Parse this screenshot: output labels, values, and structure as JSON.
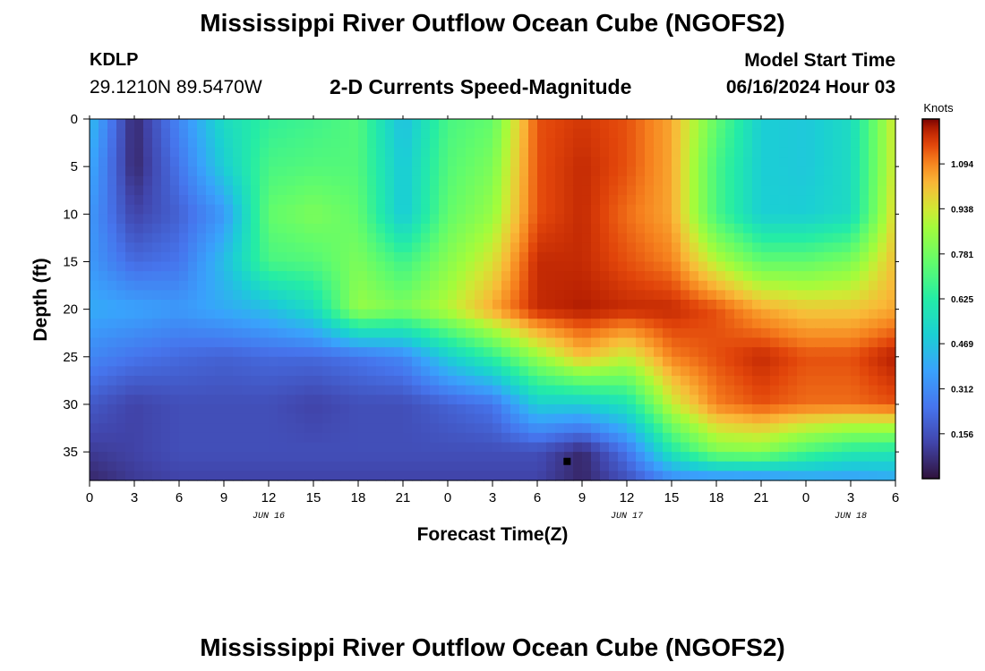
{
  "header": {
    "title": "Mississippi River Outflow Ocean Cube (NGOFS2)",
    "station_id": "KDLP",
    "station_coords": "29.1210N  89.5470W",
    "subtitle": "2-D Currents Speed-Magnitude",
    "model_label": "Model Start Time",
    "model_start": "06/16/2024 Hour 03"
  },
  "footer": {
    "title": "Mississippi River Outflow Ocean Cube (NGOFS2)"
  },
  "chart_data": {
    "type": "heatmap",
    "title": "2-D Currents Speed-Magnitude",
    "xlabel": "Forecast Time(Z)",
    "ylabel": "Depth (ft)",
    "x_hours_range": [
      0,
      54
    ],
    "x_tick_hours": [
      0,
      3,
      6,
      9,
      12,
      15,
      18,
      21,
      24,
      27,
      30,
      33,
      36,
      39,
      42,
      45,
      48,
      51,
      54
    ],
    "x_tick_labels": [
      "0",
      "3",
      "6",
      "9",
      "12",
      "15",
      "18",
      "21",
      "0",
      "3",
      "6",
      "9",
      "12",
      "15",
      "18",
      "21",
      "0",
      "3",
      "6"
    ],
    "date_labels": [
      {
        "hour": 12,
        "label": "JUN 16"
      },
      {
        "hour": 36,
        "label": "JUN 17"
      },
      {
        "hour": 51,
        "label": "JUN 18"
      }
    ],
    "y_range": [
      0,
      38
    ],
    "y_ticks": [
      0,
      5,
      10,
      15,
      20,
      25,
      30,
      35
    ],
    "colorbar": {
      "unit": "Knots",
      "range": [
        0.0,
        1.25
      ],
      "ticks": [
        0.156,
        0.312,
        0.469,
        0.625,
        0.781,
        0.938,
        1.094
      ],
      "tick_labels": [
        "0.156",
        "0.312",
        "0.469",
        "0.625",
        "0.781",
        "0.938",
        "1.094"
      ]
    },
    "grid_hours": [
      0,
      3,
      6,
      9,
      12,
      15,
      18,
      21,
      24,
      27,
      30,
      33,
      36,
      39,
      42,
      45,
      48,
      51,
      54
    ],
    "grid_depths": [
      0,
      5,
      10,
      15,
      20,
      25,
      30,
      35,
      38
    ],
    "speed_knots": [
      [
        0.45,
        0.05,
        0.3,
        0.55,
        0.65,
        0.68,
        0.72,
        0.45,
        0.7,
        0.75,
        1.15,
        1.18,
        1.15,
        1.05,
        0.75,
        0.5,
        0.48,
        0.55,
        0.95
      ],
      [
        0.4,
        0.05,
        0.25,
        0.5,
        0.7,
        0.72,
        0.72,
        0.48,
        0.72,
        0.8,
        1.15,
        1.2,
        1.15,
        1.05,
        0.7,
        0.5,
        0.48,
        0.55,
        0.95
      ],
      [
        0.35,
        0.12,
        0.2,
        0.35,
        0.75,
        0.8,
        0.75,
        0.48,
        0.75,
        0.85,
        1.15,
        1.2,
        1.12,
        1.05,
        0.7,
        0.5,
        0.5,
        0.55,
        0.98
      ],
      [
        0.35,
        0.22,
        0.25,
        0.45,
        0.7,
        0.72,
        0.8,
        0.68,
        0.82,
        0.95,
        1.2,
        1.2,
        1.15,
        1.1,
        0.9,
        0.75,
        0.75,
        0.8,
        1.02
      ],
      [
        0.4,
        0.38,
        0.35,
        0.4,
        0.45,
        0.55,
        0.85,
        0.8,
        0.9,
        1.05,
        1.2,
        1.22,
        1.2,
        1.2,
        1.15,
        1.05,
        1.0,
        1.0,
        1.05
      ],
      [
        0.3,
        0.25,
        0.22,
        0.2,
        0.22,
        0.22,
        0.25,
        0.3,
        0.5,
        0.65,
        0.85,
        1.02,
        0.92,
        1.1,
        1.15,
        1.2,
        1.15,
        1.15,
        1.22
      ],
      [
        0.18,
        0.12,
        0.15,
        0.15,
        0.15,
        0.12,
        0.15,
        0.15,
        0.2,
        0.25,
        0.5,
        0.5,
        0.58,
        0.92,
        1.1,
        1.15,
        1.12,
        1.12,
        1.15
      ],
      [
        0.1,
        0.12,
        0.15,
        0.15,
        0.15,
        0.15,
        0.15,
        0.15,
        0.15,
        0.15,
        0.15,
        0.05,
        0.25,
        0.6,
        0.8,
        0.82,
        0.7,
        0.62,
        0.6
      ],
      [
        0.05,
        0.1,
        0.12,
        0.12,
        0.12,
        0.12,
        0.12,
        0.12,
        0.12,
        0.12,
        0.12,
        0.05,
        0.15,
        0.3,
        0.3,
        0.3,
        0.35,
        0.35,
        0.38
      ]
    ],
    "marker": {
      "hour": 32,
      "depth": 36
    }
  }
}
